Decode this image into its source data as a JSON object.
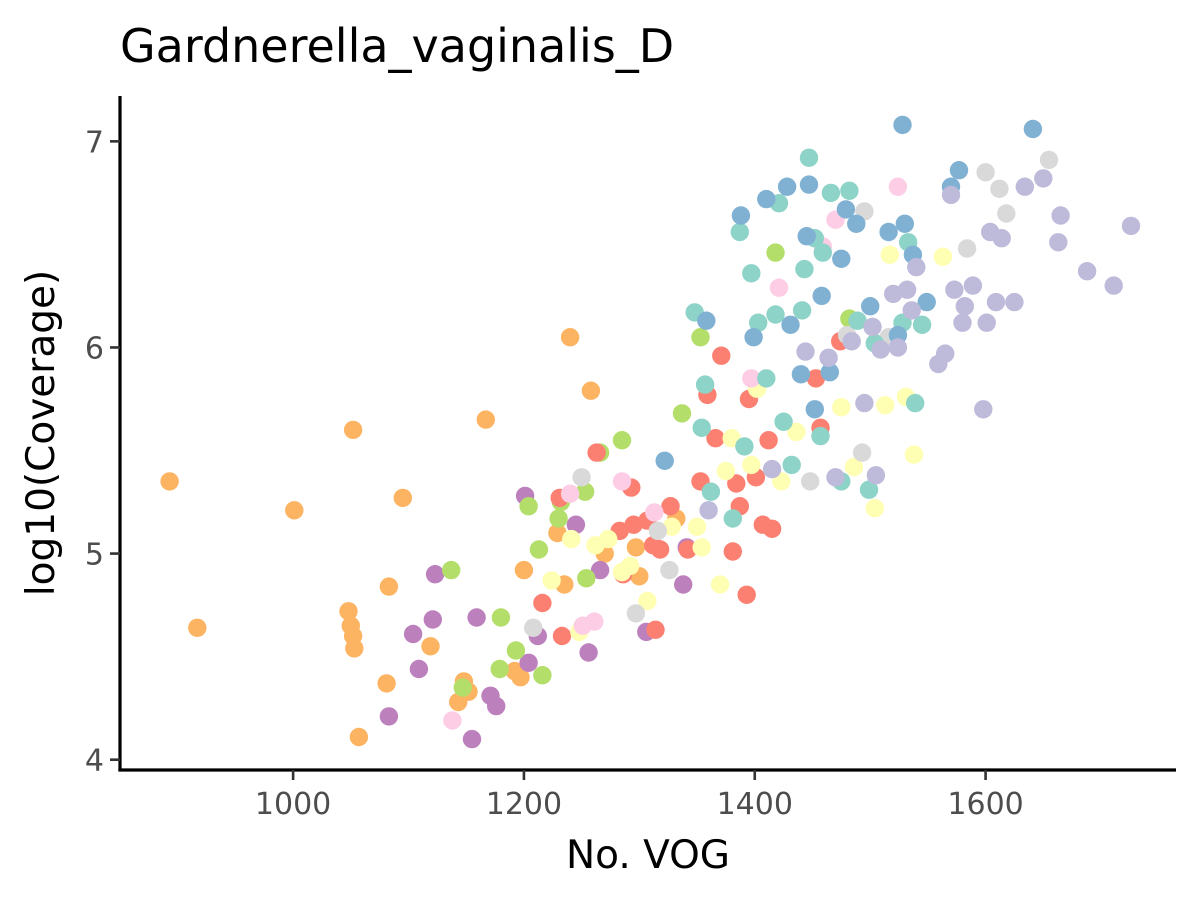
{
  "chart_data": {
    "type": "scatter",
    "title": "Gardnerella_vaginalis_D",
    "xlabel": "No. VOG",
    "ylabel": "log10(Coverage)",
    "xlim": [
      850,
      1765
    ],
    "ylim": [
      3.95,
      7.22
    ],
    "x_ticks": [
      "1000",
      "1200",
      "1400",
      "1600"
    ],
    "y_ticks": [
      "4",
      "5",
      "6",
      "7"
    ],
    "x_tick_values": [
      1000,
      1200,
      1400,
      1600
    ],
    "y_tick_values": [
      4,
      5,
      6,
      7
    ],
    "grid": false,
    "legend": "none",
    "series": [
      {
        "color": "#FDB462",
        "points": [
          [
            893,
            5.35
          ],
          [
            917,
            4.64
          ],
          [
            1001,
            5.21
          ],
          [
            1048,
            4.72
          ],
          [
            1050,
            4.65
          ],
          [
            1052,
            4.6
          ],
          [
            1052,
            5.6
          ],
          [
            1053,
            4.54
          ],
          [
            1057,
            4.11
          ],
          [
            1081,
            4.37
          ],
          [
            1083,
            4.84
          ],
          [
            1095,
            5.27
          ],
          [
            1119,
            4.55
          ],
          [
            1143,
            4.28
          ],
          [
            1148,
            4.38
          ],
          [
            1152,
            4.33
          ],
          [
            1167,
            5.65
          ],
          [
            1192,
            4.43
          ],
          [
            1197,
            4.4
          ],
          [
            1200,
            4.92
          ],
          [
            1229,
            5.1
          ],
          [
            1235,
            4.85
          ],
          [
            1240,
            6.05
          ],
          [
            1258,
            5.79
          ],
          [
            1270,
            5.0
          ],
          [
            1297,
            5.03
          ],
          [
            1300,
            4.89
          ],
          [
            1332,
            5.17
          ]
        ]
      },
      {
        "color": "#BC80BD",
        "points": [
          [
            1083,
            4.21
          ],
          [
            1104,
            4.61
          ],
          [
            1109,
            4.44
          ],
          [
            1121,
            4.68
          ],
          [
            1123,
            4.9
          ],
          [
            1155,
            4.1
          ],
          [
            1159,
            4.69
          ],
          [
            1171,
            4.31
          ],
          [
            1176,
            4.26
          ],
          [
            1201,
            5.28
          ],
          [
            1204,
            4.47
          ],
          [
            1212,
            4.6
          ],
          [
            1245,
            5.14
          ],
          [
            1256,
            4.52
          ],
          [
            1266,
            4.92
          ],
          [
            1306,
            4.62
          ],
          [
            1338,
            4.85
          ],
          [
            1341,
            5.03
          ]
        ]
      },
      {
        "color": "#B3DE69",
        "points": [
          [
            1137,
            4.92
          ],
          [
            1147,
            4.35
          ],
          [
            1179,
            4.44
          ],
          [
            1180,
            4.69
          ],
          [
            1193,
            4.53
          ],
          [
            1204,
            5.23
          ],
          [
            1213,
            5.02
          ],
          [
            1216,
            4.41
          ],
          [
            1230,
            5.17
          ],
          [
            1232,
            5.25
          ],
          [
            1253,
            5.3
          ],
          [
            1254,
            4.88
          ],
          [
            1266,
            5.49
          ],
          [
            1285,
            5.55
          ],
          [
            1337,
            5.68
          ],
          [
            1353,
            6.05
          ],
          [
            1418,
            6.46
          ],
          [
            1482,
            6.14
          ]
        ]
      },
      {
        "color": "#FB8072",
        "points": [
          [
            1216,
            4.76
          ],
          [
            1231,
            5.27
          ],
          [
            1233,
            4.6
          ],
          [
            1263,
            5.49
          ],
          [
            1283,
            5.11
          ],
          [
            1286,
            4.9
          ],
          [
            1293,
            5.32
          ],
          [
            1295,
            5.14
          ],
          [
            1307,
            5.16
          ],
          [
            1312,
            5.04
          ],
          [
            1314,
            4.63
          ],
          [
            1318,
            5.02
          ],
          [
            1327,
            5.23
          ],
          [
            1342,
            5.02
          ],
          [
            1353,
            5.35
          ],
          [
            1359,
            5.77
          ],
          [
            1366,
            5.56
          ],
          [
            1371,
            5.96
          ],
          [
            1381,
            5.01
          ],
          [
            1384,
            5.34
          ],
          [
            1387,
            5.23
          ],
          [
            1393,
            4.8
          ],
          [
            1395,
            5.75
          ],
          [
            1401,
            5.37
          ],
          [
            1407,
            5.14
          ],
          [
            1412,
            5.55
          ],
          [
            1415,
            5.12
          ],
          [
            1453,
            5.85
          ],
          [
            1457,
            5.61
          ],
          [
            1474,
            6.03
          ]
        ]
      },
      {
        "color": "#FFFFB3",
        "points": [
          [
            1224,
            4.87
          ],
          [
            1241,
            5.07
          ],
          [
            1248,
            4.62
          ],
          [
            1262,
            5.04
          ],
          [
            1273,
            5.07
          ],
          [
            1285,
            4.91
          ],
          [
            1292,
            4.94
          ],
          [
            1307,
            4.77
          ],
          [
            1328,
            5.13
          ],
          [
            1350,
            5.13
          ],
          [
            1354,
            5.03
          ],
          [
            1370,
            4.85
          ],
          [
            1375,
            5.4
          ],
          [
            1380,
            5.56
          ],
          [
            1397,
            5.43
          ],
          [
            1402,
            5.8
          ],
          [
            1423,
            5.35
          ],
          [
            1436,
            5.59
          ],
          [
            1475,
            5.71
          ],
          [
            1486,
            5.42
          ],
          [
            1504,
            5.22
          ],
          [
            1513,
            5.72
          ],
          [
            1517,
            6.45
          ],
          [
            1531,
            5.76
          ],
          [
            1538,
            5.48
          ],
          [
            1563,
            6.44
          ]
        ]
      },
      {
        "color": "#FCCDE5",
        "points": [
          [
            1138,
            4.19
          ],
          [
            1240,
            5.29
          ],
          [
            1251,
            4.65
          ],
          [
            1261,
            4.67
          ],
          [
            1285,
            5.35
          ],
          [
            1313,
            5.2
          ],
          [
            1397,
            5.85
          ],
          [
            1421,
            6.29
          ],
          [
            1459,
            6.49
          ],
          [
            1470,
            6.62
          ],
          [
            1524,
            6.78
          ]
        ]
      },
      {
        "color": "#D9D9D9",
        "points": [
          [
            1208,
            4.64
          ],
          [
            1250,
            5.37
          ],
          [
            1297,
            4.71
          ],
          [
            1316,
            5.11
          ],
          [
            1326,
            4.92
          ],
          [
            1448,
            5.35
          ],
          [
            1480,
            6.06
          ],
          [
            1493,
            5.49
          ],
          [
            1495,
            6.66
          ],
          [
            1516,
            6.05
          ],
          [
            1584,
            6.48
          ],
          [
            1600,
            6.85
          ],
          [
            1612,
            6.77
          ],
          [
            1618,
            6.65
          ],
          [
            1655,
            6.91
          ]
        ]
      },
      {
        "color": "#8DD3C7",
        "points": [
          [
            1348,
            6.17
          ],
          [
            1354,
            5.61
          ],
          [
            1357,
            5.82
          ],
          [
            1362,
            5.3
          ],
          [
            1381,
            5.17
          ],
          [
            1387,
            6.56
          ],
          [
            1391,
            5.52
          ],
          [
            1397,
            6.36
          ],
          [
            1403,
            6.12
          ],
          [
            1410,
            5.85
          ],
          [
            1418,
            6.16
          ],
          [
            1421,
            6.7
          ],
          [
            1425,
            5.64
          ],
          [
            1432,
            5.43
          ],
          [
            1441,
            6.18
          ],
          [
            1443,
            6.38
          ],
          [
            1447,
            6.92
          ],
          [
            1452,
            6.53
          ],
          [
            1457,
            5.57
          ],
          [
            1459,
            6.46
          ],
          [
            1466,
            6.75
          ],
          [
            1475,
            5.35
          ],
          [
            1482,
            6.76
          ],
          [
            1489,
            6.13
          ],
          [
            1499,
            5.31
          ],
          [
            1504,
            6.02
          ],
          [
            1528,
            6.12
          ],
          [
            1533,
            6.51
          ],
          [
            1539,
            5.73
          ],
          [
            1545,
            6.11
          ]
        ]
      },
      {
        "color": "#80B1D3",
        "points": [
          [
            1322,
            5.45
          ],
          [
            1358,
            6.13
          ],
          [
            1388,
            6.64
          ],
          [
            1399,
            6.05
          ],
          [
            1410,
            6.72
          ],
          [
            1428,
            6.78
          ],
          [
            1431,
            6.11
          ],
          [
            1440,
            5.87
          ],
          [
            1445,
            6.54
          ],
          [
            1447,
            6.79
          ],
          [
            1452,
            5.7
          ],
          [
            1458,
            6.25
          ],
          [
            1465,
            5.88
          ],
          [
            1475,
            6.43
          ],
          [
            1479,
            6.67
          ],
          [
            1488,
            6.6
          ],
          [
            1500,
            6.2
          ],
          [
            1516,
            6.56
          ],
          [
            1524,
            6.06
          ],
          [
            1528,
            7.08
          ],
          [
            1530,
            6.6
          ],
          [
            1537,
            6.45
          ],
          [
            1549,
            6.22
          ],
          [
            1570,
            6.78
          ],
          [
            1577,
            6.86
          ],
          [
            1641,
            7.06
          ]
        ]
      },
      {
        "color": "#BEBADA",
        "points": [
          [
            1360,
            5.21
          ],
          [
            1415,
            5.41
          ],
          [
            1444,
            5.98
          ],
          [
            1464,
            5.95
          ],
          [
            1470,
            5.37
          ],
          [
            1484,
            6.03
          ],
          [
            1495,
            5.73
          ],
          [
            1502,
            6.1
          ],
          [
            1505,
            5.38
          ],
          [
            1509,
            5.99
          ],
          [
            1520,
            6.26
          ],
          [
            1524,
            6.0
          ],
          [
            1532,
            6.28
          ],
          [
            1536,
            6.18
          ],
          [
            1540,
            6.39
          ],
          [
            1559,
            5.92
          ],
          [
            1565,
            5.97
          ],
          [
            1570,
            6.74
          ],
          [
            1573,
            6.28
          ],
          [
            1580,
            6.12
          ],
          [
            1582,
            6.2
          ],
          [
            1589,
            6.3
          ],
          [
            1598,
            5.7
          ],
          [
            1601,
            6.12
          ],
          [
            1604,
            6.56
          ],
          [
            1609,
            6.22
          ],
          [
            1614,
            6.53
          ],
          [
            1625,
            6.22
          ],
          [
            1634,
            6.78
          ],
          [
            1650,
            6.82
          ],
          [
            1663,
            6.51
          ],
          [
            1665,
            6.64
          ],
          [
            1688,
            6.37
          ],
          [
            1711,
            6.3
          ],
          [
            1726,
            6.59
          ]
        ]
      }
    ]
  }
}
